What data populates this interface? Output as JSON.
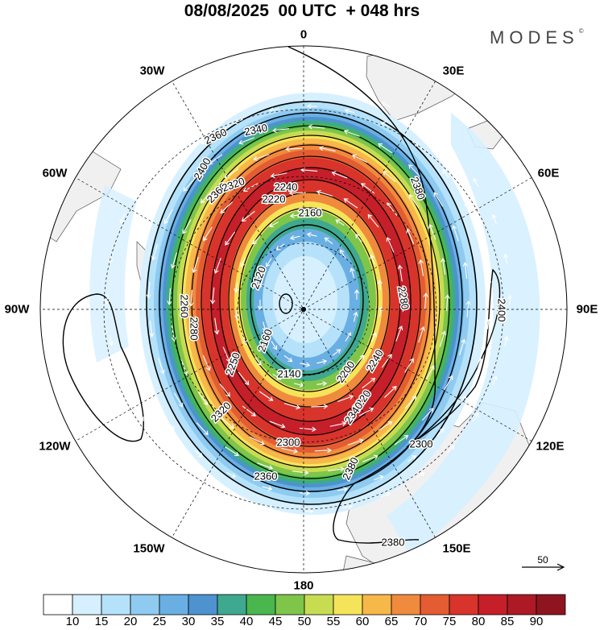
{
  "header": {
    "title": "08/08/2025  00 UTC  + 048 hrs",
    "brand": "MODES",
    "brand_mark": "©"
  },
  "map": {
    "projection": "south-polar-stereographic",
    "longitude_labels": [
      {
        "id": "lon-0",
        "text": "0"
      },
      {
        "id": "lon-30e",
        "text": "30E"
      },
      {
        "id": "lon-60e",
        "text": "60E"
      },
      {
        "id": "lon-90e",
        "text": "90E"
      },
      {
        "id": "lon-120e",
        "text": "120E"
      },
      {
        "id": "lon-150e",
        "text": "150E"
      },
      {
        "id": "lon-180",
        "text": "180"
      },
      {
        "id": "lon-150w",
        "text": "150W"
      },
      {
        "id": "lon-120w",
        "text": "120W"
      },
      {
        "id": "lon-90w",
        "text": "90W"
      },
      {
        "id": "lon-60w",
        "text": "60W"
      },
      {
        "id": "lon-30w",
        "text": "30W"
      }
    ],
    "contour_labels": [
      "2340",
      "2360",
      "2380",
      "2400",
      "2360",
      "2320",
      "2240",
      "2220",
      "2160",
      "2120",
      "2140",
      "2160",
      "2200",
      "2220",
      "2240",
      "2280",
      "2300",
      "2320",
      "2340",
      "2360",
      "2380",
      "2400",
      "2380",
      "2300",
      "2280",
      "2260",
      "2250",
      "2140"
    ],
    "reference_vector": {
      "value": "50"
    },
    "colors": {
      "coast": "#555555",
      "land": "#f0f0f0",
      "contour": "#000000",
      "vector": "#ffffff"
    }
  },
  "colorbar": {
    "levels": [
      "10",
      "15",
      "20",
      "25",
      "30",
      "35",
      "40",
      "45",
      "50",
      "55",
      "60",
      "65",
      "70",
      "75",
      "80",
      "85",
      "90"
    ],
    "colors": [
      "#ffffff",
      "#d6f0ff",
      "#b5e2fa",
      "#8fcbf0",
      "#6aafe3",
      "#4e92cf",
      "#3fa98f",
      "#49b74e",
      "#7fc54a",
      "#c8dc52",
      "#f5e35a",
      "#f7b84a",
      "#f08a3d",
      "#e45c32",
      "#d8342b",
      "#c51f2a",
      "#ad1a25",
      "#8e1520"
    ]
  }
}
